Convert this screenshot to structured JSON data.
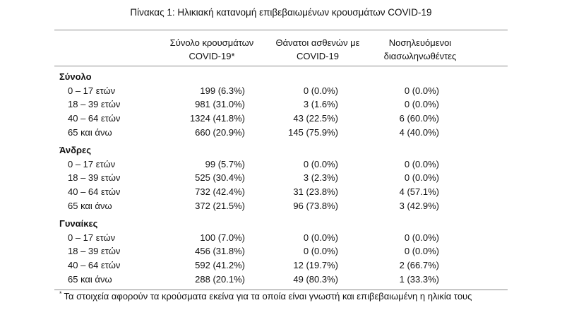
{
  "caption": "Πίνακας 1: Ηλικιακή κατανομή επιβεβαιωμένων κρουσμάτων COVID-19",
  "columns": [
    {
      "line1": "Σύνολο κρουσμάτων",
      "line2": "COVID-19*"
    },
    {
      "line1": "Θάνατοι ασθενών με",
      "line2": "COVID-19"
    },
    {
      "line1": "Νοσηλευόμενοι",
      "line2": "διασωληνωθέντες"
    }
  ],
  "groups": [
    {
      "title": "Σύνολο",
      "rows": [
        {
          "label": "0 – 17 ετών",
          "cases": "199 (6.3%)",
          "deaths": "0 (0.0%)",
          "intubated": "0 (0.0%)"
        },
        {
          "label": "18 – 39 ετών",
          "cases": "981 (31.0%)",
          "deaths": "3 (1.6%)",
          "intubated": "0 (0.0%)"
        },
        {
          "label": "40 – 64 ετών",
          "cases": "1324 (41.8%)",
          "deaths": "43 (22.5%)",
          "intubated": "6 (60.0%)"
        },
        {
          "label": "65 και άνω",
          "cases": "660 (20.9%)",
          "deaths": "145 (75.9%)",
          "intubated": "4 (40.0%)"
        }
      ]
    },
    {
      "title": "Άνδρες",
      "rows": [
        {
          "label": "0 – 17 ετών",
          "cases": "99 (5.7%)",
          "deaths": "0 (0.0%)",
          "intubated": "0 (0.0%)"
        },
        {
          "label": "18 – 39 ετών",
          "cases": "525 (30.4%)",
          "deaths": "3 (2.3%)",
          "intubated": "0 (0.0%)"
        },
        {
          "label": "40 – 64 ετών",
          "cases": "732 (42.4%)",
          "deaths": "31 (23.8%)",
          "intubated": "4 (57.1%)"
        },
        {
          "label": "65 και άνω",
          "cases": "372 (21.5%)",
          "deaths": "96 (73.8%)",
          "intubated": "3 (42.9%)"
        }
      ]
    },
    {
      "title": "Γυναίκες",
      "rows": [
        {
          "label": "0 – 17 ετών",
          "cases": "100 (7.0%)",
          "deaths": "0 (0.0%)",
          "intubated": "0 (0.0%)"
        },
        {
          "label": "18 – 39 ετών",
          "cases": "456 (31.8%)",
          "deaths": "0 (0.0%)",
          "intubated": "0 (0.0%)"
        },
        {
          "label": "40 – 64 ετών",
          "cases": "592 (41.2%)",
          "deaths": "12 (19.7%)",
          "intubated": "2 (66.7%)"
        },
        {
          "label": "65 και άνω",
          "cases": "288 (20.1%)",
          "deaths": "49 (80.3%)",
          "intubated": "1 (33.3%)"
        }
      ]
    }
  ],
  "footnote": {
    "marker": "*",
    "text": "Τα στοιχεία αφορούν τα κρούσματα εκείνα για τα οποία είναι γνωστή και επιβεβαιωμένη η ηλικία τους"
  }
}
